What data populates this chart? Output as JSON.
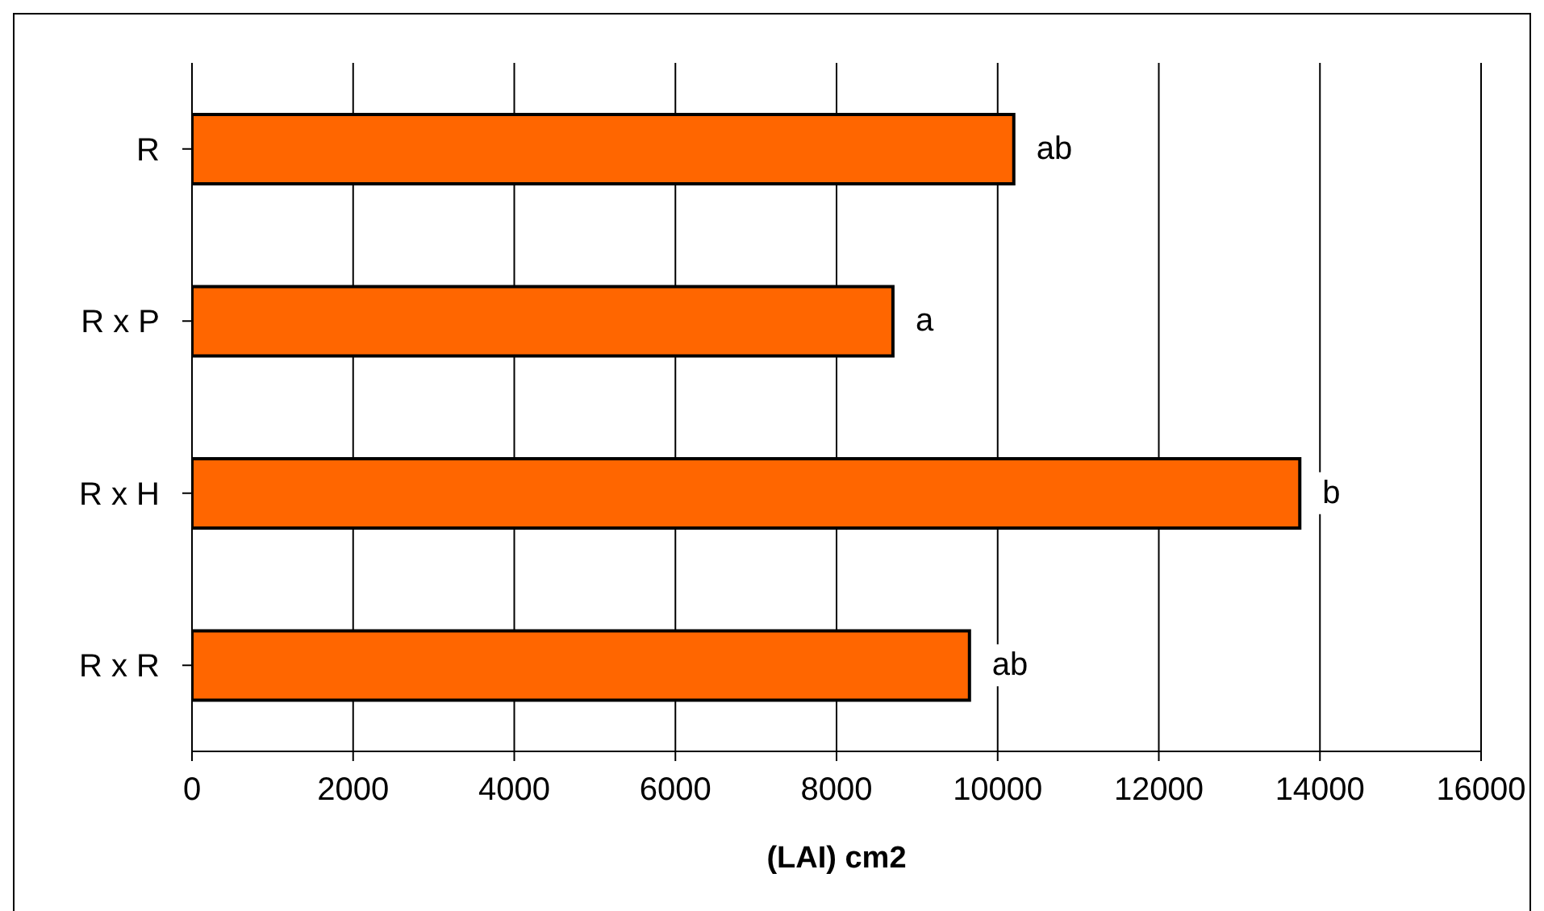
{
  "chart_data": {
    "type": "bar",
    "orientation": "horizontal",
    "categories": [
      "R",
      "R x P",
      "R x H",
      "R x R"
    ],
    "values": [
      10200,
      8700,
      13750,
      9650
    ],
    "color": "#ff6600",
    "xlabel": "(LAI) cm2",
    "xlim": [
      0,
      16000
    ],
    "xticks": [
      0,
      2000,
      4000,
      6000,
      8000,
      10000,
      12000,
      14000,
      16000
    ],
    "grid": "x",
    "annotations": [
      {
        "text": "ab",
        "x": 10200,
        "y": "R"
      },
      {
        "text": "a",
        "x": 8700,
        "y": "R x P"
      },
      {
        "text": "b",
        "x": 13750,
        "y": "R x H"
      },
      {
        "text": "ab",
        "x": 9650,
        "y": "R x R"
      }
    ]
  }
}
